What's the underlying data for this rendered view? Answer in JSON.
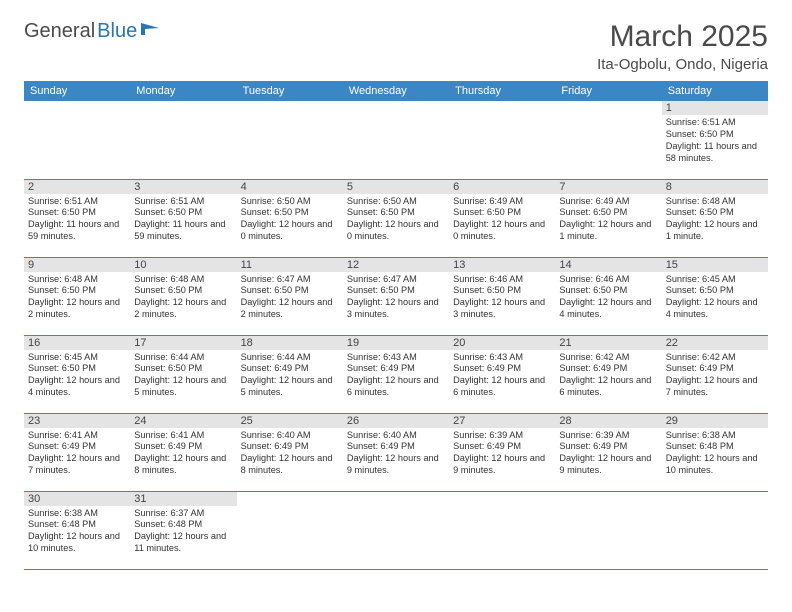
{
  "logo": {
    "text1": "General",
    "text2": "Blue"
  },
  "title": "March 2025",
  "location": "Ita-Ogbolu, Ondo, Nigeria",
  "colors": {
    "header_bg": "#3b86c4",
    "header_text": "#ffffff",
    "daybar_bg": "#e4e4e4",
    "border": "#3b86c4",
    "logo_blue": "#2776b8"
  },
  "weekdays": [
    "Sunday",
    "Monday",
    "Tuesday",
    "Wednesday",
    "Thursday",
    "Friday",
    "Saturday"
  ],
  "weeks": [
    [
      null,
      null,
      null,
      null,
      null,
      null,
      {
        "n": "1",
        "sr": "6:51 AM",
        "ss": "6:50 PM",
        "dl": "11 hours and 58 minutes."
      }
    ],
    [
      {
        "n": "2",
        "sr": "6:51 AM",
        "ss": "6:50 PM",
        "dl": "11 hours and 59 minutes."
      },
      {
        "n": "3",
        "sr": "6:51 AM",
        "ss": "6:50 PM",
        "dl": "11 hours and 59 minutes."
      },
      {
        "n": "4",
        "sr": "6:50 AM",
        "ss": "6:50 PM",
        "dl": "12 hours and 0 minutes."
      },
      {
        "n": "5",
        "sr": "6:50 AM",
        "ss": "6:50 PM",
        "dl": "12 hours and 0 minutes."
      },
      {
        "n": "6",
        "sr": "6:49 AM",
        "ss": "6:50 PM",
        "dl": "12 hours and 0 minutes."
      },
      {
        "n": "7",
        "sr": "6:49 AM",
        "ss": "6:50 PM",
        "dl": "12 hours and 1 minute."
      },
      {
        "n": "8",
        "sr": "6:48 AM",
        "ss": "6:50 PM",
        "dl": "12 hours and 1 minute."
      }
    ],
    [
      {
        "n": "9",
        "sr": "6:48 AM",
        "ss": "6:50 PM",
        "dl": "12 hours and 2 minutes."
      },
      {
        "n": "10",
        "sr": "6:48 AM",
        "ss": "6:50 PM",
        "dl": "12 hours and 2 minutes."
      },
      {
        "n": "11",
        "sr": "6:47 AM",
        "ss": "6:50 PM",
        "dl": "12 hours and 2 minutes."
      },
      {
        "n": "12",
        "sr": "6:47 AM",
        "ss": "6:50 PM",
        "dl": "12 hours and 3 minutes."
      },
      {
        "n": "13",
        "sr": "6:46 AM",
        "ss": "6:50 PM",
        "dl": "12 hours and 3 minutes."
      },
      {
        "n": "14",
        "sr": "6:46 AM",
        "ss": "6:50 PM",
        "dl": "12 hours and 4 minutes."
      },
      {
        "n": "15",
        "sr": "6:45 AM",
        "ss": "6:50 PM",
        "dl": "12 hours and 4 minutes."
      }
    ],
    [
      {
        "n": "16",
        "sr": "6:45 AM",
        "ss": "6:50 PM",
        "dl": "12 hours and 4 minutes."
      },
      {
        "n": "17",
        "sr": "6:44 AM",
        "ss": "6:50 PM",
        "dl": "12 hours and 5 minutes."
      },
      {
        "n": "18",
        "sr": "6:44 AM",
        "ss": "6:49 PM",
        "dl": "12 hours and 5 minutes."
      },
      {
        "n": "19",
        "sr": "6:43 AM",
        "ss": "6:49 PM",
        "dl": "12 hours and 6 minutes."
      },
      {
        "n": "20",
        "sr": "6:43 AM",
        "ss": "6:49 PM",
        "dl": "12 hours and 6 minutes."
      },
      {
        "n": "21",
        "sr": "6:42 AM",
        "ss": "6:49 PM",
        "dl": "12 hours and 6 minutes."
      },
      {
        "n": "22",
        "sr": "6:42 AM",
        "ss": "6:49 PM",
        "dl": "12 hours and 7 minutes."
      }
    ],
    [
      {
        "n": "23",
        "sr": "6:41 AM",
        "ss": "6:49 PM",
        "dl": "12 hours and 7 minutes."
      },
      {
        "n": "24",
        "sr": "6:41 AM",
        "ss": "6:49 PM",
        "dl": "12 hours and 8 minutes."
      },
      {
        "n": "25",
        "sr": "6:40 AM",
        "ss": "6:49 PM",
        "dl": "12 hours and 8 minutes."
      },
      {
        "n": "26",
        "sr": "6:40 AM",
        "ss": "6:49 PM",
        "dl": "12 hours and 9 minutes."
      },
      {
        "n": "27",
        "sr": "6:39 AM",
        "ss": "6:49 PM",
        "dl": "12 hours and 9 minutes."
      },
      {
        "n": "28",
        "sr": "6:39 AM",
        "ss": "6:49 PM",
        "dl": "12 hours and 9 minutes."
      },
      {
        "n": "29",
        "sr": "6:38 AM",
        "ss": "6:48 PM",
        "dl": "12 hours and 10 minutes."
      }
    ],
    [
      {
        "n": "30",
        "sr": "6:38 AM",
        "ss": "6:48 PM",
        "dl": "12 hours and 10 minutes."
      },
      {
        "n": "31",
        "sr": "6:37 AM",
        "ss": "6:48 PM",
        "dl": "12 hours and 11 minutes."
      },
      null,
      null,
      null,
      null,
      null
    ]
  ],
  "labels": {
    "sunrise": "Sunrise:",
    "sunset": "Sunset:",
    "daylight": "Daylight:"
  }
}
